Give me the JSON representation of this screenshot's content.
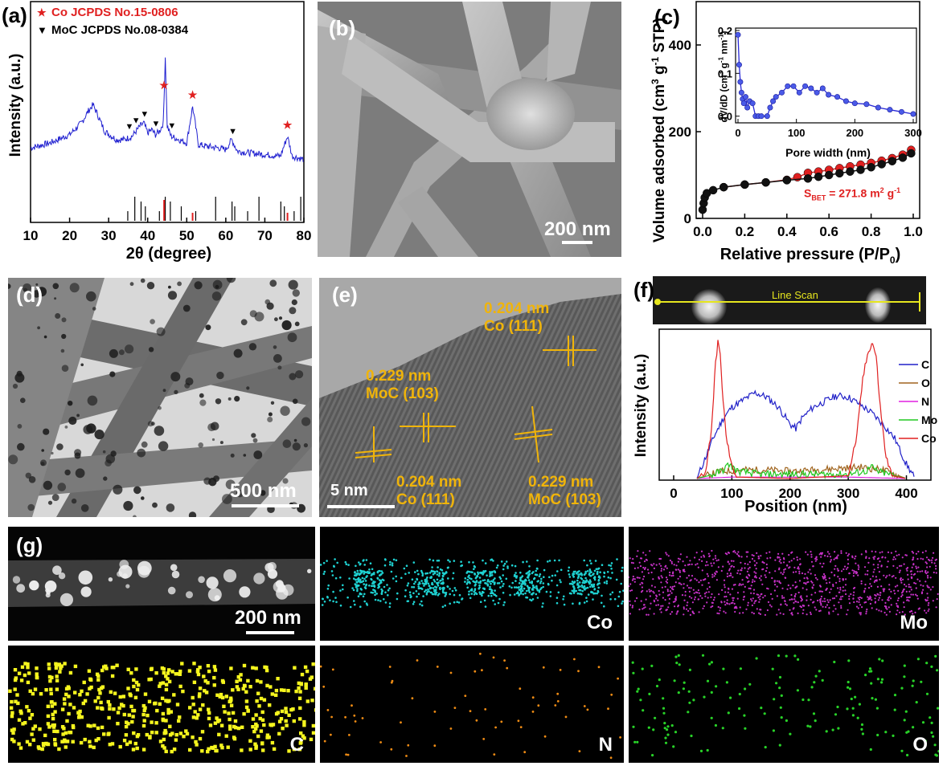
{
  "panels": {
    "a": {
      "label": "(a)"
    },
    "b": {
      "label": "(b)",
      "scale": "200 nm"
    },
    "c": {
      "label": "(c)"
    },
    "d": {
      "label": "(d)",
      "scale": "500 nm"
    },
    "e": {
      "label": "(e)",
      "scale": "5 nm",
      "annotations": [
        {
          "d": "0.204 nm",
          "p": "Co (111)"
        },
        {
          "d": "0.229 nm",
          "p": "MoC (103)"
        },
        {
          "d": "0.204 nm",
          "p": "Co (111)"
        },
        {
          "d": "0.229 nm",
          "p": "MoC (103)"
        }
      ]
    },
    "f": {
      "label": "(f)",
      "linescan": "Line Scan"
    },
    "g": {
      "label": "(g)",
      "scale": "200 nm",
      "maps": [
        {
          "element": "Co",
          "color": "#1fd2d2"
        },
        {
          "element": "Mo",
          "color": "#c832c8"
        },
        {
          "element": "C",
          "color": "#f5f51e"
        },
        {
          "element": "N",
          "color": "#f08c14"
        },
        {
          "element": "O",
          "color": "#28d228"
        }
      ]
    }
  },
  "chart_data": [
    {
      "id": "a",
      "type": "line",
      "xlabel": "2θ (degree)",
      "ylabel": "Intensity (a.u.)",
      "xlim": [
        10,
        80
      ],
      "xticks": [
        10,
        20,
        30,
        40,
        50,
        60,
        70,
        80
      ],
      "legend": [
        {
          "marker": "★",
          "text": "Co JCPDS No.15-0806",
          "color": "#e02020"
        },
        {
          "marker": "▼",
          "text": "MoC JCPDS No.08-0384",
          "color": "#000000"
        }
      ],
      "series": [
        {
          "color": "#1f1fd0",
          "x": [
            10,
            15,
            20,
            23,
            25,
            26,
            27,
            29,
            32,
            34,
            36,
            37,
            38,
            39,
            40,
            41,
            42,
            43,
            44,
            44.5,
            45,
            46,
            48,
            50,
            51.5,
            53,
            55,
            58,
            60,
            61.5,
            63,
            66,
            70,
            74,
            75.8,
            77,
            80
          ],
          "y": [
            0.45,
            0.48,
            0.53,
            0.6,
            0.68,
            0.71,
            0.66,
            0.55,
            0.5,
            0.5,
            0.52,
            0.55,
            0.58,
            0.6,
            0.54,
            0.56,
            0.53,
            0.55,
            0.6,
            1.0,
            0.58,
            0.52,
            0.5,
            0.48,
            0.7,
            0.47,
            0.46,
            0.45,
            0.44,
            0.5,
            0.43,
            0.42,
            0.41,
            0.4,
            0.52,
            0.4,
            0.38
          ]
        }
      ],
      "co_peaks": [
        44.2,
        51.5,
        75.8
      ],
      "moc_peaks": [
        35.3,
        37.0,
        39.2,
        42.1,
        46.2,
        61.8
      ],
      "ref_lines": {
        "co": [
          44.2,
          51.5,
          75.8
        ],
        "moc": [
          34.9,
          36.7,
          38.3,
          39.4,
          43.0,
          44.5,
          45.8,
          48.6,
          52.3,
          57.4,
          61.6,
          62.3,
          65.6,
          68.5,
          74.1,
          75.0,
          77.5,
          79.2
        ]
      }
    },
    {
      "id": "c",
      "type": "scatter",
      "xlabel": "Relative pressure (P/P0)",
      "ylabel": "Volume adsorbed (cm3 g-1 STP)",
      "xlim": [
        0,
        1.0
      ],
      "ylim": [
        0,
        500
      ],
      "xticks": [
        0.0,
        0.2,
        0.4,
        0.6,
        0.8,
        1.0
      ],
      "yticks": [
        0,
        200,
        400
      ],
      "annotation": "SBET = 271.8 m2 g-1",
      "series": [
        {
          "color": "#e02020",
          "x": [
            0.1,
            0.2,
            0.3,
            0.4,
            0.45,
            0.5,
            0.55,
            0.6,
            0.65,
            0.7,
            0.75,
            0.8,
            0.85,
            0.9,
            0.95,
            0.99
          ],
          "y": [
            72,
            78,
            83,
            89,
            95,
            105,
            108,
            112,
            116,
            120,
            124,
            128,
            133,
            139,
            147,
            158
          ]
        },
        {
          "color": "#111111",
          "x": [
            0.0,
            0.005,
            0.01,
            0.02,
            0.05,
            0.1,
            0.2,
            0.3,
            0.4,
            0.5,
            0.55,
            0.6,
            0.65,
            0.7,
            0.75,
            0.8,
            0.85,
            0.9,
            0.95,
            0.99
          ],
          "y": [
            20,
            35,
            48,
            58,
            65,
            72,
            78,
            83,
            88,
            92,
            96,
            100,
            104,
            108,
            112,
            118,
            125,
            132,
            140,
            150
          ]
        }
      ],
      "inset": {
        "type": "line",
        "xlabel": "Pore width (nm)",
        "ylabel": "dV/dD (cm3 g-1 nm-1)",
        "xlim": [
          0,
          300
        ],
        "ylim": [
          -0.01,
          0.2
        ],
        "xticks": [
          0,
          100,
          200,
          300
        ],
        "yticks": [
          0.0,
          0.1,
          0.2
        ],
        "x": [
          0,
          2,
          4,
          6,
          8,
          10,
          13,
          16,
          20,
          25,
          30,
          35,
          40,
          50,
          55,
          60,
          65,
          75,
          85,
          95,
          105,
          115,
          125,
          135,
          145,
          155,
          170,
          185,
          200,
          220,
          240,
          260,
          280,
          300
        ],
        "y": [
          0.19,
          0.12,
          0.08,
          0.055,
          0.04,
          0.03,
          0.045,
          0.02,
          0.035,
          0.03,
          0.0,
          0.0,
          0.0,
          0.0,
          0.02,
          0.035,
          0.045,
          0.055,
          0.07,
          0.07,
          0.055,
          0.07,
          0.065,
          0.055,
          0.065,
          0.05,
          0.045,
          0.035,
          0.03,
          0.028,
          0.02,
          0.015,
          0.01,
          0.005
        ]
      }
    },
    {
      "id": "f",
      "type": "line",
      "xlabel": "Position (nm)",
      "ylabel": "Intensity (a.u.)",
      "xlim": [
        0,
        420
      ],
      "xticks": [
        0,
        100,
        200,
        300,
        400
      ],
      "ylim": [
        0,
        1
      ],
      "legend_position": "right",
      "series": [
        {
          "name": "C",
          "color": "#2020c8",
          "x": [
            40,
            55,
            70,
            85,
            100,
            120,
            140,
            160,
            180,
            200,
            210,
            220,
            240,
            260,
            280,
            300,
            320,
            340,
            360,
            380,
            400,
            415
          ],
          "y": [
            0,
            0.15,
            0.3,
            0.42,
            0.5,
            0.55,
            0.6,
            0.57,
            0.5,
            0.38,
            0.35,
            0.42,
            0.5,
            0.54,
            0.58,
            0.57,
            0.52,
            0.46,
            0.38,
            0.28,
            0.1,
            0
          ]
        },
        {
          "name": "O",
          "color": "#a0641e",
          "x": [
            40,
            80,
            120,
            160,
            200,
            240,
            280,
            320,
            360,
            380,
            400
          ],
          "y": [
            0,
            0.05,
            0.06,
            0.06,
            0.05,
            0.06,
            0.07,
            0.08,
            0.06,
            0.03,
            0
          ]
        },
        {
          "name": "N",
          "color": "#e020e0",
          "x": [
            40,
            100,
            200,
            300,
            400
          ],
          "y": [
            0,
            0.01,
            0.01,
            0.01,
            0
          ]
        },
        {
          "name": "Mo",
          "color": "#20c820",
          "x": [
            40,
            70,
            85,
            95,
            110,
            150,
            200,
            250,
            300,
            330,
            340,
            350,
            380,
            400
          ],
          "y": [
            0,
            0.03,
            0.06,
            0.1,
            0.05,
            0.03,
            0.03,
            0.03,
            0.03,
            0.05,
            0.08,
            0.05,
            0.02,
            0
          ]
        },
        {
          "name": "Co",
          "color": "#e02020",
          "x": [
            40,
            55,
            65,
            72,
            76,
            80,
            85,
            90,
            100,
            110,
            200,
            300,
            315,
            325,
            335,
            342,
            348,
            355,
            365,
            375,
            400
          ],
          "y": [
            0,
            0.05,
            0.35,
            0.8,
            0.97,
            0.85,
            0.55,
            0.3,
            0.08,
            0.01,
            0,
            0.02,
            0.3,
            0.7,
            0.9,
            0.95,
            0.85,
            0.5,
            0.15,
            0.02,
            0
          ]
        }
      ]
    }
  ]
}
